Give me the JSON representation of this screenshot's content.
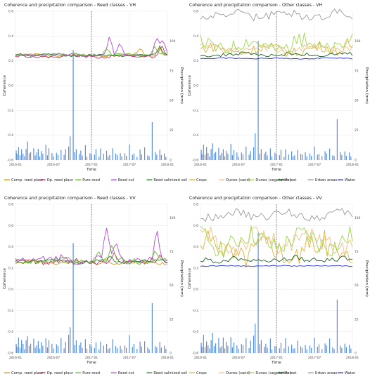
{
  "chart_data": [
    {
      "type": "line",
      "title": "Coherence and precipitation comparison - Reed classes - VH",
      "xlabel": "Time",
      "ylabel": "Coherence",
      "y2label": "Precipitation (mm)",
      "ylim": [
        -0.6,
        0.6
      ],
      "y2lim": [
        0,
        125
      ],
      "xticks": [
        "2016-01",
        "2016-07",
        "2017-01",
        "2017-07",
        "2018-01"
      ],
      "yticks": [
        -0.6,
        -0.4,
        -0.2,
        0.0,
        0.2,
        0.4,
        0.6
      ],
      "y2ticks": [
        0,
        25,
        50,
        75,
        100
      ],
      "divider_x": "2017-01",
      "legend_position": "bottom",
      "series": [
        {
          "name": "Comp. reed plaur",
          "color": "#d49a1a",
          "base": 0.245,
          "amp": 0.012,
          "spikes": [
            [
              0.82,
              0.05
            ],
            [
              0.95,
              0.08
            ]
          ]
        },
        {
          "name": "Op. reed plaur",
          "color": "#c0306a",
          "base": 0.235,
          "amp": 0.01,
          "spikes": [
            [
              0.96,
              0.1
            ]
          ]
        },
        {
          "name": "Pure reed",
          "color": "#63c32a",
          "base": 0.25,
          "amp": 0.01,
          "spikes": [
            [
              0.6,
              0.05
            ],
            [
              0.92,
              0.07
            ]
          ]
        },
        {
          "name": "Reed cut",
          "color": "#b24ad6",
          "base": 0.25,
          "amp": 0.012,
          "spikes": [
            [
              0.62,
              0.16
            ],
            [
              0.69,
              0.1
            ],
            [
              0.93,
              0.15
            ],
            [
              0.97,
              0.12
            ]
          ]
        },
        {
          "name": "Reed salinized soil",
          "color": "#2d8a2d",
          "base": 0.245,
          "amp": 0.008,
          "spikes": [
            [
              0.95,
              0.07
            ]
          ]
        }
      ]
    },
    {
      "type": "line",
      "title": "Coherence and precipitation comparison - Other classes - VH",
      "xlabel": "Time",
      "ylabel": "Coherence",
      "y2label": "Precipitation (mm)",
      "ylim": [
        -0.6,
        0.6
      ],
      "y2lim": [
        0,
        125
      ],
      "xticks": [
        "2016-01",
        "2016-07",
        "2017-01",
        "2017-07",
        "2018-01"
      ],
      "yticks": [
        -0.6,
        -0.4,
        -0.2,
        0.0,
        0.2,
        0.4,
        0.6
      ],
      "y2ticks": [
        0,
        25,
        50,
        75,
        100
      ],
      "divider_x": "2017-01",
      "legend_position": "bottom",
      "series": [
        {
          "name": "Crops",
          "color": "#e0b23a",
          "base": 0.29,
          "amp": 0.04,
          "spikes": [
            [
              0.96,
              0.1
            ]
          ]
        },
        {
          "name": "Dunes (sand)",
          "color": "#f0c18a",
          "base": 0.3,
          "amp": 0.03,
          "spikes": []
        },
        {
          "name": "Dunes (vegetation)",
          "color": "#9ed84a",
          "base": 0.33,
          "amp": 0.06,
          "spikes": []
        },
        {
          "name": "Forest",
          "color": "#1d5e1d",
          "base": 0.25,
          "amp": 0.015,
          "spikes": []
        },
        {
          "name": "Urban areas",
          "color": "#9a9a9a",
          "base": 0.57,
          "amp": 0.035,
          "spikes": []
        },
        {
          "name": "Water",
          "color": "#2a36c8",
          "base": 0.22,
          "amp": 0.004,
          "spikes": []
        }
      ]
    },
    {
      "type": "line",
      "title": "Coherence and precipitation comparison - Reed classes - VV",
      "xlabel": "Time",
      "ylabel": "Coherence",
      "y2label": "Precipitation (mm)",
      "ylim": [
        -0.6,
        0.8
      ],
      "y2lim": [
        0,
        110
      ],
      "xticks": [
        "2016-01",
        "2016-07",
        "2017-01",
        "2017-07",
        "2018-01"
      ],
      "yticks": [
        -0.6,
        -0.4,
        -0.2,
        0.0,
        0.2,
        0.4,
        0.6,
        0.8
      ],
      "y2ticks": [
        0,
        25,
        50,
        75,
        100
      ],
      "divider_x": "2017-01",
      "legend_position": "bottom",
      "series": [
        {
          "name": "Comp. reed plaur",
          "color": "#d49a1a",
          "base": 0.25,
          "amp": 0.015,
          "spikes": [
            [
              0.6,
              0.06
            ],
            [
              0.9,
              0.05
            ]
          ]
        },
        {
          "name": "Op. reed plaur",
          "color": "#c0306a",
          "base": 0.26,
          "amp": 0.02,
          "spikes": [
            [
              0.65,
              0.08
            ],
            [
              0.95,
              0.07
            ]
          ]
        },
        {
          "name": "Pure reed",
          "color": "#63c32a",
          "base": 0.27,
          "amp": 0.025,
          "spikes": [
            [
              0.55,
              0.1
            ],
            [
              0.63,
              0.14
            ],
            [
              0.92,
              0.1
            ]
          ]
        },
        {
          "name": "Reed cut",
          "color": "#b24ad6",
          "base": 0.28,
          "amp": 0.035,
          "spikes": [
            [
              0.6,
              0.3
            ],
            [
              0.66,
              0.18
            ],
            [
              0.93,
              0.27
            ]
          ]
        },
        {
          "name": "Reed salinized soil",
          "color": "#2d8a2d",
          "base": 0.26,
          "amp": 0.015,
          "spikes": [
            [
              0.62,
              0.06
            ]
          ]
        }
      ]
    },
    {
      "type": "line",
      "title": "Coherence and precipitation comparison - Other classes - VV",
      "xlabel": "Time",
      "ylabel": "Coherence",
      "y2label": "Precipitation (mm)",
      "ylim": [
        -0.6,
        0.8
      ],
      "y2lim": [
        0,
        110
      ],
      "xticks": [
        "2016-01",
        "2016-07",
        "2017-01",
        "2017-07",
        "2018-01"
      ],
      "yticks": [
        -0.6,
        -0.4,
        -0.2,
        0.0,
        0.2,
        0.4,
        0.6,
        0.8
      ],
      "y2ticks": [
        0,
        25,
        50,
        75,
        100
      ],
      "divider_x": "2017-01",
      "legend_position": "bottom",
      "series": [
        {
          "name": "Crops",
          "color": "#e0b23a",
          "base": 0.38,
          "amp": 0.12,
          "spikes": []
        },
        {
          "name": "Dunes (sand)",
          "color": "#f0c18a",
          "base": 0.45,
          "amp": 0.1,
          "spikes": []
        },
        {
          "name": "Dunes (vegetation)",
          "color": "#9ed84a",
          "base": 0.45,
          "amp": 0.1,
          "spikes": []
        },
        {
          "name": "Forest",
          "color": "#1d5e1d",
          "base": 0.28,
          "amp": 0.025,
          "spikes": []
        },
        {
          "name": "Urban areas",
          "color": "#9a9a9a",
          "base": 0.7,
          "amp": 0.04,
          "spikes": []
        },
        {
          "name": "Water",
          "color": "#2a36c8",
          "base": 0.22,
          "amp": 0.004,
          "spikes": []
        }
      ]
    }
  ],
  "precipitation": {
    "color": "#5b8fd9",
    "bars": [
      [
        0.005,
        8
      ],
      [
        0.01,
        5
      ],
      [
        0.02,
        12
      ],
      [
        0.03,
        4
      ],
      [
        0.04,
        10
      ],
      [
        0.05,
        6
      ],
      [
        0.06,
        3
      ],
      [
        0.07,
        9
      ],
      [
        0.08,
        14
      ],
      [
        0.09,
        5
      ],
      [
        0.1,
        7
      ],
      [
        0.12,
        11
      ],
      [
        0.13,
        4
      ],
      [
        0.14,
        6
      ],
      [
        0.15,
        10
      ],
      [
        0.16,
        3
      ],
      [
        0.17,
        8
      ],
      [
        0.18,
        5
      ],
      [
        0.2,
        12
      ],
      [
        0.21,
        4
      ],
      [
        0.22,
        9
      ],
      [
        0.24,
        6
      ],
      [
        0.25,
        3
      ],
      [
        0.27,
        7
      ],
      [
        0.28,
        5
      ],
      [
        0.3,
        10
      ],
      [
        0.32,
        4
      ],
      [
        0.33,
        8
      ],
      [
        0.35,
        12
      ],
      [
        0.36,
        20
      ],
      [
        0.38,
        88
      ],
      [
        0.39,
        6
      ],
      [
        0.4,
        9
      ],
      [
        0.42,
        5
      ],
      [
        0.43,
        7
      ],
      [
        0.44,
        4
      ],
      [
        0.46,
        11
      ],
      [
        0.47,
        3
      ],
      [
        0.49,
        6
      ],
      [
        0.5,
        5
      ],
      [
        0.52,
        4
      ],
      [
        0.53,
        8
      ],
      [
        0.55,
        3
      ],
      [
        0.56,
        10
      ],
      [
        0.58,
        5
      ],
      [
        0.6,
        7
      ],
      [
        0.61,
        3
      ],
      [
        0.62,
        4
      ],
      [
        0.64,
        9
      ],
      [
        0.66,
        5
      ],
      [
        0.67,
        4
      ],
      [
        0.69,
        6
      ],
      [
        0.7,
        3
      ],
      [
        0.72,
        5
      ],
      [
        0.73,
        4
      ],
      [
        0.75,
        12
      ],
      [
        0.77,
        4
      ],
      [
        0.78,
        6
      ],
      [
        0.8,
        3
      ],
      [
        0.82,
        8
      ],
      [
        0.83,
        5
      ],
      [
        0.85,
        10
      ],
      [
        0.87,
        4
      ],
      [
        0.88,
        3
      ],
      [
        0.9,
        36
      ],
      [
        0.92,
        6
      ],
      [
        0.93,
        4
      ],
      [
        0.95,
        8
      ],
      [
        0.96,
        4
      ],
      [
        0.98,
        6
      ],
      [
        0.99,
        3
      ]
    ]
  }
}
